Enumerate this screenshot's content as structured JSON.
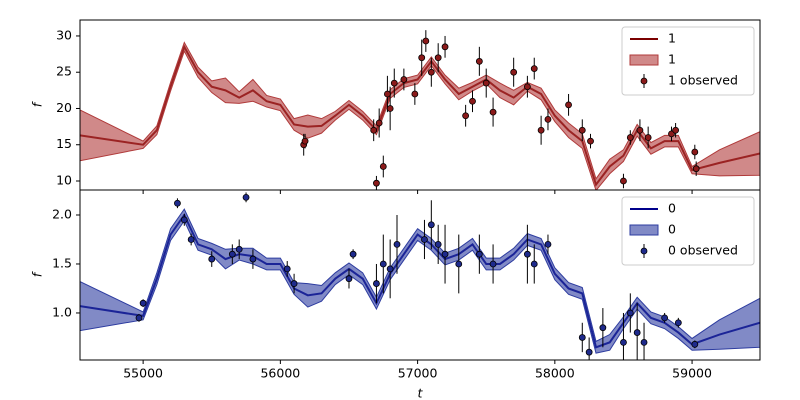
{
  "chart_data": [
    {
      "type": "line",
      "ylabel": "f",
      "xlim": [
        54540,
        59495
      ],
      "xticks": [
        55000,
        56000,
        57000,
        58000,
        59000
      ],
      "ylim": [
        8.76,
        32.2
      ],
      "yticks": [
        10,
        15,
        20,
        25,
        30
      ],
      "legend": "upper right",
      "x": [
        54540,
        55000,
        55100,
        55200,
        55300,
        55400,
        55500,
        55600,
        55700,
        55800,
        55900,
        56000,
        56100,
        56200,
        56300,
        56400,
        56500,
        56600,
        56700,
        56800,
        56900,
        57000,
        57100,
        57200,
        57300,
        57400,
        57500,
        57600,
        57700,
        57800,
        57900,
        58000,
        58100,
        58200,
        58300,
        58400,
        58500,
        58600,
        58700,
        58800,
        58900,
        59000,
        59200,
        59495
      ],
      "series": [
        {
          "name": "1",
          "color": "#7b0000",
          "values": [
            16.3,
            15,
            17,
            23,
            28.5,
            25,
            23,
            22.5,
            21.5,
            22.5,
            21,
            20.5,
            17.8,
            17.5,
            17.6,
            19,
            20.5,
            19,
            17,
            22,
            23.5,
            24,
            26.5,
            24,
            22,
            23,
            24,
            22.5,
            21.5,
            23,
            22,
            19,
            17,
            15.5,
            9.5,
            12,
            13.5,
            17,
            14.5,
            15.5,
            15.5,
            11.5,
            12.5,
            13.8
          ]
        },
        {
          "name": "1",
          "color": "#b03a3a",
          "lower": [
            12.8,
            14.5,
            16.4,
            22.4,
            27.9,
            24.3,
            22.2,
            20.8,
            20.7,
            21.0,
            20.2,
            19.7,
            17.0,
            15.9,
            16.6,
            18.4,
            19.9,
            18.4,
            16.4,
            21.4,
            22.9,
            23.4,
            25.9,
            23.4,
            21.2,
            22.4,
            23.4,
            21.5,
            20.5,
            22.4,
            21.2,
            18.2,
            16.0,
            14.5,
            8.7,
            11.0,
            12.7,
            16.2,
            13.7,
            14.7,
            14.7,
            11.0,
            10.7,
            10.8
          ],
          "upper": [
            19.8,
            15.5,
            17.6,
            23.6,
            29.1,
            25.7,
            23.8,
            24.2,
            22.3,
            24.0,
            21.8,
            21.3,
            18.6,
            19.1,
            18.6,
            19.6,
            21.1,
            19.6,
            17.6,
            22.6,
            24.1,
            24.6,
            27.1,
            24.6,
            22.8,
            23.6,
            24.6,
            23.5,
            22.5,
            23.6,
            22.8,
            19.8,
            18.0,
            16.5,
            10.3,
            13.0,
            14.3,
            17.8,
            15.3,
            16.3,
            16.3,
            12.0,
            14.3,
            16.8
          ]
        },
        {
          "name": "1 observed",
          "color": "#8b1a1a",
          "x": [
            56170,
            56180,
            56680,
            56700,
            56720,
            56750,
            56780,
            56800,
            56830,
            56900,
            56980,
            57030,
            57060,
            57100,
            57150,
            57200,
            57350,
            57400,
            57450,
            57500,
            57550,
            57700,
            57800,
            57850,
            57900,
            57950,
            58100,
            58200,
            58260,
            58500,
            58550,
            58620,
            58680,
            58850,
            58880,
            59020,
            59030
          ],
          "values": [
            15,
            15.5,
            17,
            9.7,
            18,
            12,
            22,
            20,
            23.5,
            24,
            22,
            27,
            29.3,
            25,
            27,
            28.5,
            19,
            21,
            26.5,
            23.5,
            19.5,
            25,
            23,
            25.5,
            17,
            18.5,
            20.5,
            17,
            15.5,
            10,
            16,
            17,
            16,
            16.5,
            17,
            14,
            11.7
          ],
          "err": [
            1.5,
            1,
            1.5,
            1,
            2,
            1.5,
            2.5,
            3,
            2,
            1.5,
            1.5,
            2.5,
            1.5,
            2,
            2,
            1.5,
            1.5,
            1.5,
            2,
            2,
            2,
            2,
            1.5,
            1.5,
            2,
            1.5,
            1.5,
            1.5,
            1,
            1,
            1,
            1.5,
            1.5,
            1,
            1,
            1,
            1
          ]
        }
      ]
    },
    {
      "type": "line",
      "xlabel": "t",
      "ylabel": "f",
      "xlim": [
        54540,
        59495
      ],
      "xticks": [
        55000,
        56000,
        57000,
        58000,
        59000
      ],
      "ylim": [
        0.52,
        2.255
      ],
      "yticks": [
        {
          "value": 1,
          "label": "1.0"
        },
        1.5,
        {
          "value": 2,
          "label": "2.0"
        }
      ],
      "legend": "upper right",
      "x": [
        54540,
        55000,
        55100,
        55200,
        55300,
        55400,
        55500,
        55600,
        55700,
        55800,
        55900,
        56000,
        56100,
        56200,
        56300,
        56400,
        56500,
        56600,
        56700,
        56800,
        56900,
        57000,
        57100,
        57200,
        57300,
        57400,
        57500,
        57600,
        57700,
        57800,
        57900,
        58000,
        58100,
        58200,
        58300,
        58400,
        58500,
        58600,
        58700,
        58800,
        58900,
        59000,
        59200,
        59495
      ],
      "series": [
        {
          "name": "0",
          "color": "#00008b",
          "values": [
            1.07,
            0.97,
            1.35,
            1.8,
            2.0,
            1.7,
            1.65,
            1.55,
            1.6,
            1.58,
            1.5,
            1.5,
            1.25,
            1.18,
            1.2,
            1.35,
            1.45,
            1.35,
            1.1,
            1.4,
            1.6,
            1.8,
            1.7,
            1.55,
            1.6,
            1.7,
            1.5,
            1.5,
            1.6,
            1.75,
            1.7,
            1.4,
            1.25,
            1.2,
            0.65,
            0.7,
            0.9,
            1.1,
            0.95,
            0.9,
            0.8,
            0.68,
            0.78,
            0.9
          ]
        },
        {
          "name": "0",
          "color": "#2d3ca0",
          "lower": [
            0.82,
            0.93,
            1.29,
            1.74,
            1.94,
            1.64,
            1.59,
            1.45,
            1.54,
            1.5,
            1.44,
            1.44,
            1.19,
            1.06,
            1.12,
            1.29,
            1.39,
            1.29,
            1.04,
            1.34,
            1.54,
            1.74,
            1.64,
            1.49,
            1.54,
            1.64,
            1.44,
            1.44,
            1.54,
            1.69,
            1.64,
            1.34,
            1.19,
            1.14,
            0.59,
            0.62,
            0.84,
            1.04,
            0.89,
            0.84,
            0.74,
            0.62,
            0.63,
            0.65
          ],
          "upper": [
            1.32,
            1.01,
            1.41,
            1.86,
            2.06,
            1.76,
            1.71,
            1.65,
            1.66,
            1.66,
            1.56,
            1.56,
            1.31,
            1.3,
            1.28,
            1.41,
            1.51,
            1.41,
            1.16,
            1.46,
            1.66,
            1.86,
            1.76,
            1.61,
            1.66,
            1.76,
            1.56,
            1.56,
            1.66,
            1.81,
            1.76,
            1.46,
            1.31,
            1.26,
            0.71,
            0.78,
            0.96,
            1.16,
            1.01,
            0.96,
            0.86,
            0.74,
            0.93,
            1.15
          ]
        },
        {
          "name": "0 observed",
          "color": "#1e2a8c",
          "x": [
            54970,
            55000,
            55250,
            55300,
            55350,
            55500,
            55650,
            55700,
            55750,
            55800,
            56050,
            56100,
            56500,
            56530,
            56700,
            56750,
            56800,
            56850,
            57050,
            57100,
            57150,
            57200,
            57300,
            57450,
            57550,
            57800,
            57850,
            57950,
            58200,
            58250,
            58350,
            58500,
            58550,
            58600,
            58650,
            58800,
            58900,
            59020
          ],
          "values": [
            0.95,
            1.1,
            2.12,
            1.95,
            1.75,
            1.55,
            1.6,
            1.65,
            2.18,
            1.55,
            1.45,
            1.3,
            1.35,
            1.6,
            1.3,
            1.5,
            1.45,
            1.7,
            1.75,
            1.9,
            1.7,
            1.6,
            1.5,
            1.6,
            1.5,
            1.6,
            1.5,
            1.7,
            0.75,
            0.6,
            0.85,
            0.7,
            1.0,
            0.8,
            0.7,
            0.95,
            0.9,
            0.68
          ],
          "err": [
            0.04,
            0.04,
            0.05,
            0.06,
            0.06,
            0.08,
            0.1,
            0.1,
            0.05,
            0.1,
            0.08,
            0.1,
            0.1,
            0.05,
            0.2,
            0.3,
            0.3,
            0.3,
            0.2,
            0.25,
            0.2,
            0.3,
            0.3,
            0.2,
            0.2,
            0.3,
            0.2,
            0.1,
            0.15,
            0.15,
            0.2,
            0.3,
            0.2,
            0.3,
            0.2,
            0.05,
            0.05,
            0.04
          ]
        }
      ]
    }
  ]
}
